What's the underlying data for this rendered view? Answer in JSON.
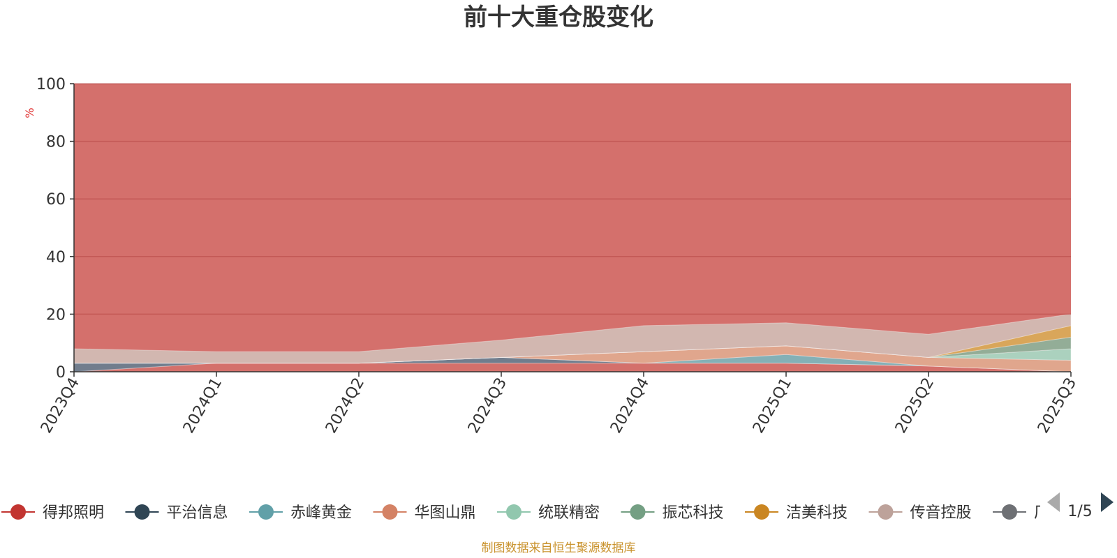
{
  "chart_data": {
    "type": "area",
    "title": "前十大重仓股变化",
    "ylabel": "%",
    "ylim": [
      0,
      100
    ],
    "yticks": [
      0,
      20,
      40,
      60,
      80,
      100
    ],
    "categories": [
      "2023Q4",
      "2024Q1",
      "2024Q2",
      "2024Q3",
      "2024Q4",
      "2025Q1",
      "2025Q2",
      "2025Q3"
    ],
    "grid": true,
    "background_fill_color": "#d4706c",
    "series": [
      {
        "name": "得邦照明",
        "color": "#d4706c",
        "values": [
          0,
          3,
          3,
          3,
          3,
          3,
          2,
          0
        ]
      },
      {
        "name": "平治信息",
        "color": "#6b7d8f",
        "values": [
          3,
          0,
          0,
          2,
          0,
          0,
          0,
          0
        ]
      },
      {
        "name": "赤峰黄金",
        "color": "#7fb3bb",
        "values": [
          0,
          0,
          0,
          0,
          0,
          3,
          0,
          0
        ]
      },
      {
        "name": "华图山鼎",
        "color": "#e0a98f",
        "values": [
          0,
          0,
          0,
          0,
          4,
          3,
          3,
          4
        ]
      },
      {
        "name": "统联精密",
        "color": "#a9d6c3",
        "values": [
          0,
          0,
          0,
          0,
          0,
          0,
          0,
          4
        ]
      },
      {
        "name": "振芯科技",
        "color": "#8fb09a",
        "values": [
          0,
          0,
          0,
          0,
          0,
          0,
          0,
          4
        ]
      },
      {
        "name": "洁美科技",
        "color": "#d9a95a",
        "values": [
          0,
          0,
          0,
          0,
          0,
          0,
          0,
          4
        ]
      },
      {
        "name": "传音控股",
        "color": "#d2bab4",
        "values": [
          5,
          4,
          4,
          6,
          9,
          8,
          8,
          4
        ]
      }
    ],
    "legend": {
      "items": [
        {
          "name": "得邦照明",
          "color": "#c23531"
        },
        {
          "name": "平治信息",
          "color": "#2f4554"
        },
        {
          "name": "赤峰黄金",
          "color": "#61a0a8"
        },
        {
          "name": "华图山鼎",
          "color": "#d48265"
        },
        {
          "name": "统联精密",
          "color": "#91c7ae"
        },
        {
          "name": "振芯科技",
          "color": "#749f83"
        },
        {
          "name": "洁美科技",
          "color": "#ca8622"
        },
        {
          "name": "传音控股",
          "color": "#bda29a"
        },
        {
          "name": "厂",
          "color": "#6e7074"
        }
      ],
      "placement": "bottom",
      "page": "1/5"
    },
    "footer": "制图数据来自恒生聚源数据库"
  }
}
